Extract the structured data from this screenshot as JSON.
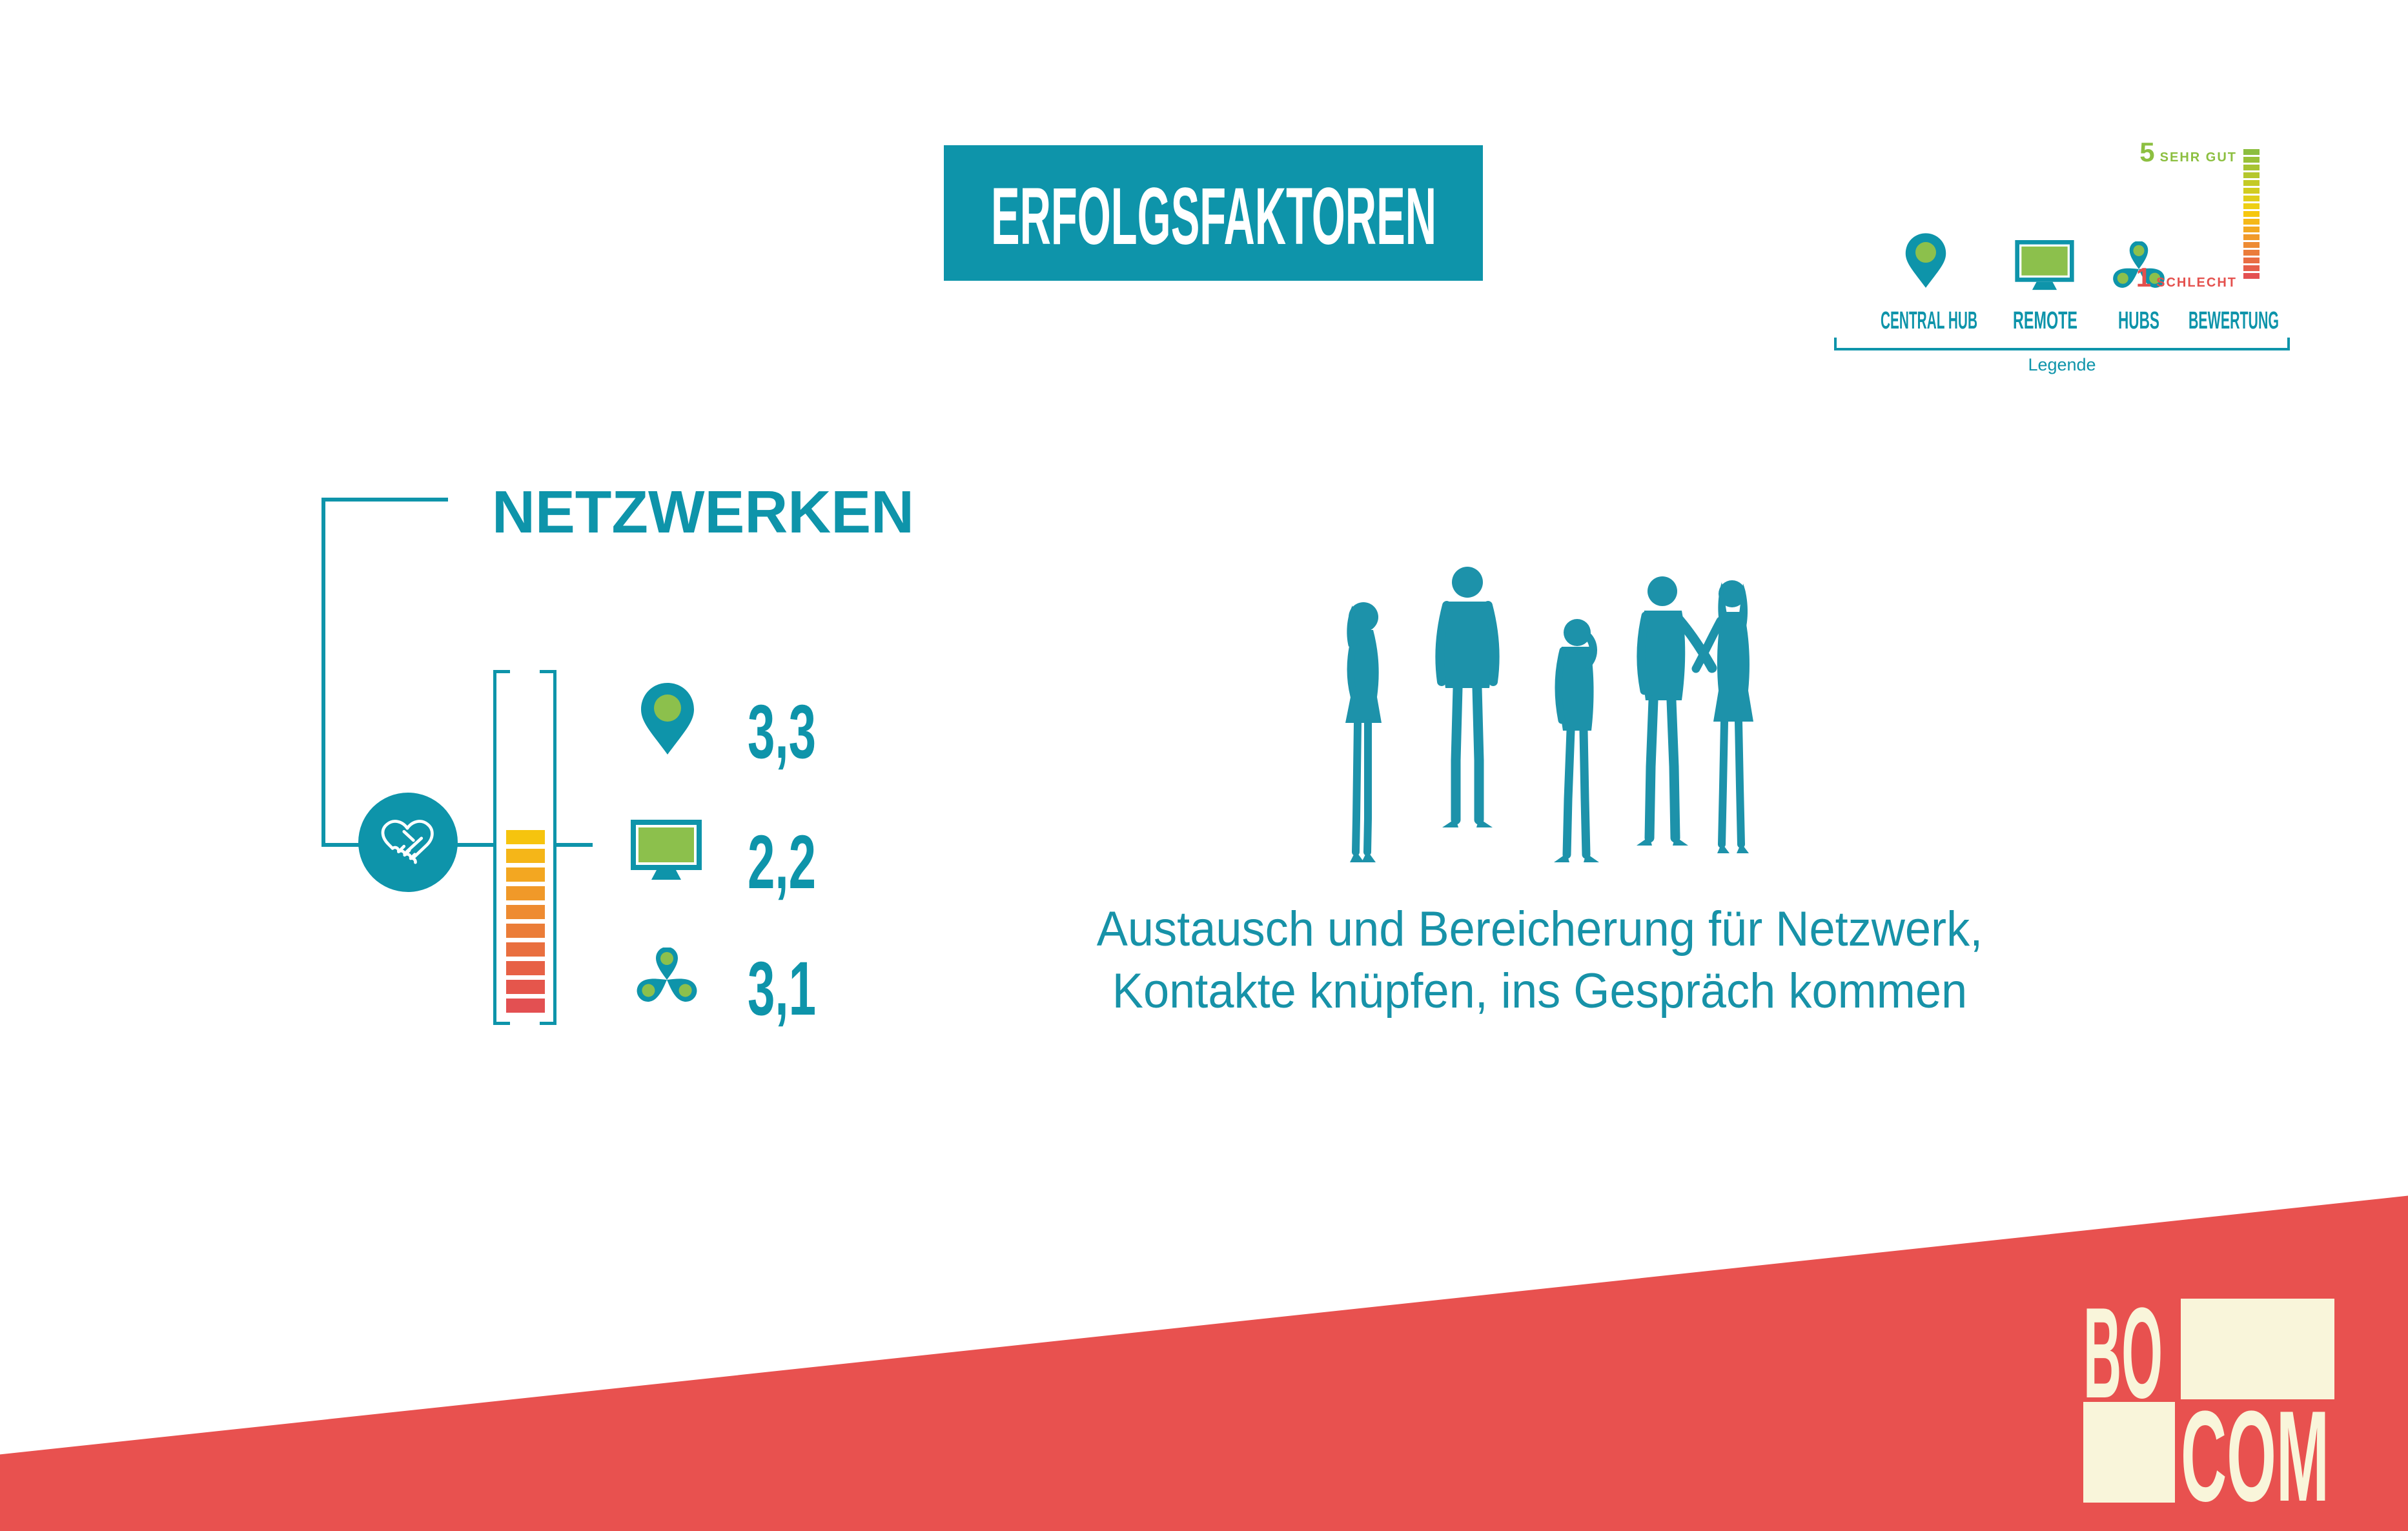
{
  "title": {
    "label": "ERFOLGSFAKTOREN"
  },
  "legend": {
    "caption": "Legende",
    "items": [
      {
        "label": "CENTRAL HUB",
        "icon": "map-pin-icon"
      },
      {
        "label": "REMOTE",
        "icon": "monitor-icon"
      },
      {
        "label": "HUBS",
        "icon": "hubs-icon"
      },
      {
        "label": "BEWERTUNG",
        "icon": "rating-scale-icon"
      }
    ],
    "scale": {
      "top_value": "5",
      "top_label": "SEHR GUT",
      "bottom_value": "1",
      "bottom_label": "SCHLECHT",
      "segment_count": 17,
      "colors": [
        "#8cbe3f",
        "#99c138",
        "#a7c432",
        "#b5c72c",
        "#c4ca26",
        "#d2cc20",
        "#e0ce1a",
        "#eecf14",
        "#f6c70f",
        "#f5b818",
        "#f3a921",
        "#f19a2a",
        "#ee8b33",
        "#eb7c3b",
        "#e96d43",
        "#e65e4a",
        "#e45051"
      ]
    }
  },
  "section": {
    "title": "NETZWERKEN"
  },
  "chart_data": {
    "type": "bar",
    "title": "NETZWERKEN",
    "categories": [
      "CENTRAL HUB",
      "REMOTE",
      "HUBS"
    ],
    "values": [
      3.3,
      2.2,
      3.1
    ],
    "value_labels": [
      "3,3",
      "2,2",
      "3,1"
    ],
    "ylabel": "BEWERTUNG",
    "ylim": [
      1,
      5
    ],
    "scale_top_label": "5 SEHR GUT",
    "scale_bottom_label": "1 SCHLECHT",
    "gauge_filled_segments": 10,
    "gauge_total_segments": 19,
    "gauge_colors": [
      "#f6c40e",
      "#f5b618",
      "#f3a721",
      "#f09929",
      "#ee8b31",
      "#eb7d38",
      "#e96f3f",
      "#e76146",
      "#e5564c",
      "#e35052"
    ]
  },
  "caption": {
    "line1": "Austausch und Bereicherung für Netzwerk,",
    "line2": "Kontakte knüpfen, ins Gespräch kommen"
  },
  "logo": {
    "top": "BO",
    "bottom": "COM"
  },
  "colors": {
    "teal": "#0e94aa",
    "green": "#8cc04c",
    "red_band": "#e8514f",
    "cream": "#f9f5da",
    "green_label": "#8cbf40",
    "red_label": "#e4504d"
  }
}
